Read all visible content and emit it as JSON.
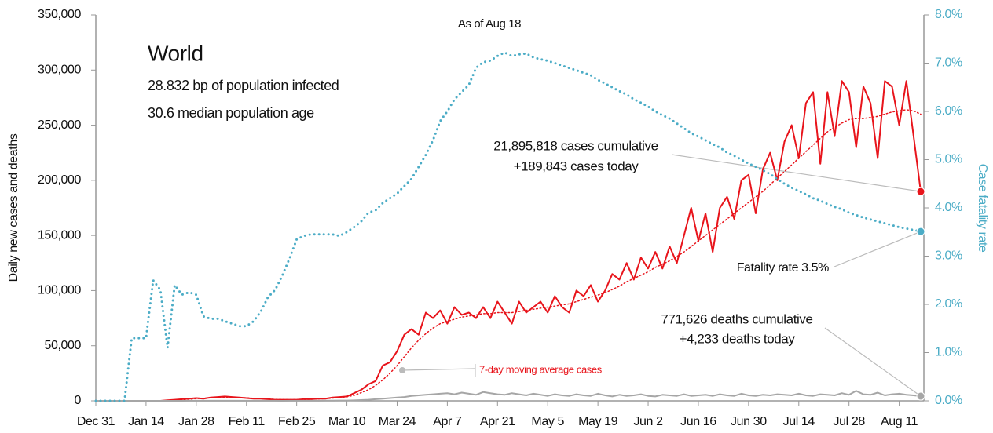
{
  "chart_data": {
    "type": "line",
    "annotations": [
      "As of Aug 18",
      "World",
      "28.832 bp of population infected",
      "30.6 median population age",
      "21,895,818 cases cumulative",
      "+189,843 cases today",
      "Fatality rate 3.5%",
      "771,626 deaths cumulative",
      "+4,233 deaths today"
    ],
    "ylabel": "Daily new cases and deaths",
    "y2label": "Case fatality rate",
    "categories": [
      "Dec 31",
      null,
      null,
      null,
      null,
      null,
      null,
      "Jan 14",
      null,
      null,
      null,
      null,
      null,
      null,
      "Jan 28",
      null,
      null,
      null,
      null,
      null,
      null,
      "Feb 11",
      null,
      null,
      null,
      null,
      null,
      null,
      "Feb 25",
      null,
      null,
      null,
      null,
      null,
      null,
      "Mar 10",
      null,
      null,
      null,
      null,
      null,
      null,
      "Mar 24",
      null,
      null,
      null,
      null,
      null,
      null,
      "Apr 7",
      null,
      null,
      null,
      null,
      null,
      null,
      "Apr 21",
      null,
      null,
      null,
      null,
      null,
      null,
      "May 5",
      null,
      null,
      null,
      null,
      null,
      null,
      "May 19",
      null,
      null,
      null,
      null,
      null,
      null,
      "Jun 2",
      null,
      null,
      null,
      null,
      null,
      null,
      "Jun 16",
      null,
      null,
      null,
      null,
      null,
      null,
      "Jun 30",
      null,
      null,
      null,
      null,
      null,
      null,
      "Jul 14",
      null,
      null,
      null,
      null,
      null,
      null,
      "Jul 28",
      null,
      null,
      null,
      null,
      null,
      null,
      "Aug 11",
      null,
      null,
      null
    ],
    "series": [
      {
        "color": "#e8141b",
        "style": "solid",
        "width": 2,
        "values": [
          0,
          0,
          0,
          0,
          0,
          0,
          0,
          0,
          0,
          0,
          500,
          1000,
          1500,
          2000,
          2500,
          2000,
          3000,
          3500,
          4000,
          3500,
          3000,
          2500,
          2000,
          2000,
          1500,
          1000,
          1000,
          1000,
          1000,
          1500,
          1500,
          2000,
          2000,
          3000,
          3500,
          4000,
          7000,
          10000,
          15000,
          18000,
          32000,
          35000,
          45000,
          60000,
          65000,
          60000,
          80000,
          75000,
          82000,
          70000,
          85000,
          78000,
          80000,
          75000,
          85000,
          75000,
          90000,
          80000,
          70000,
          90000,
          80000,
          85000,
          90000,
          80000,
          95000,
          85000,
          80000,
          100000,
          95000,
          105000,
          90000,
          100000,
          115000,
          110000,
          125000,
          110000,
          130000,
          120000,
          135000,
          120000,
          140000,
          125000,
          150000,
          175000,
          145000,
          170000,
          135000,
          175000,
          185000,
          165000,
          200000,
          205000,
          170000,
          210000,
          225000,
          200000,
          235000,
          250000,
          220000,
          270000,
          280000,
          215000,
          280000,
          240000,
          290000,
          280000,
          230000,
          285000,
          270000,
          220000,
          290000,
          285000,
          250000,
          290000,
          240000,
          189843
        ]
      },
      {
        "name": "7-day moving average cases",
        "color": "#e8141b",
        "style": "dotted",
        "width": 1.5,
        "values": [
          0,
          0,
          0,
          0,
          0,
          0,
          0,
          0,
          0,
          0,
          200,
          500,
          1000,
          1500,
          2000,
          2300,
          2700,
          3000,
          3300,
          3200,
          3000,
          2700,
          2300,
          2000,
          1700,
          1300,
          1100,
          1000,
          1100,
          1200,
          1400,
          1700,
          2000,
          2500,
          3000,
          3700,
          5000,
          7500,
          10000,
          14000,
          19000,
          25000,
          32000,
          40000,
          48000,
          55000,
          61000,
          66000,
          70000,
          72000,
          74000,
          76000,
          77000,
          78000,
          79000,
          79000,
          80000,
          80000,
          80000,
          81000,
          82000,
          83000,
          84000,
          85000,
          86000,
          87000,
          88000,
          90000,
          92000,
          94000,
          96000,
          98000,
          101000,
          104000,
          108000,
          111000,
          114000,
          117000,
          121000,
          124000,
          127000,
          131000,
          135000,
          140000,
          145000,
          150000,
          155000,
          160000,
          165000,
          170000,
          175000,
          180000,
          185000,
          190000,
          196000,
          202000,
          208000,
          214000,
          220000,
          226000,
          232000,
          238000,
          244000,
          248000,
          252000,
          255000,
          256000,
          256000,
          257000,
          258000,
          260000,
          262000,
          263000,
          264000,
          263000,
          260000
        ]
      },
      {
        "color": "#a6a6a6",
        "style": "solid",
        "width": 2,
        "values": [
          0,
          0,
          0,
          0,
          0,
          0,
          0,
          0,
          0,
          0,
          0,
          0,
          20,
          40,
          60,
          80,
          100,
          100,
          90,
          80,
          80,
          80,
          70,
          60,
          50,
          40,
          30,
          40,
          50,
          60,
          80,
          100,
          150,
          200,
          250,
          300,
          400,
          700,
          1000,
          1500,
          2000,
          2500,
          3000,
          3500,
          4500,
          5000,
          5500,
          6000,
          6500,
          7000,
          6000,
          7500,
          6500,
          5500,
          8000,
          7000,
          6000,
          5500,
          7000,
          6000,
          5000,
          6500,
          5500,
          4500,
          6000,
          5000,
          4500,
          6000,
          5000,
          4500,
          6500,
          5000,
          4000,
          5500,
          4500,
          5000,
          6000,
          4500,
          4000,
          5500,
          5000,
          4500,
          6000,
          4500,
          5000,
          5500,
          4500,
          6000,
          5000,
          4500,
          6500,
          5000,
          4500,
          5500,
          5000,
          6000,
          5500,
          5000,
          6500,
          5000,
          4500,
          6000,
          5500,
          5000,
          7000,
          5500,
          9000,
          6000,
          5500,
          7500,
          5000,
          6000,
          6500,
          5500,
          5000,
          4233
        ]
      },
      {
        "color": "#4bacc6",
        "style": "dotted",
        "width": 3,
        "axis": "y2",
        "values": [
          0,
          0,
          0,
          0,
          0,
          1.3,
          1.3,
          1.3,
          2.5,
          2.3,
          1.1,
          2.4,
          2.2,
          2.25,
          2.2,
          1.75,
          1.7,
          1.7,
          1.65,
          1.6,
          1.55,
          1.55,
          1.65,
          1.85,
          2.15,
          2.3,
          2.6,
          2.95,
          3.35,
          3.42,
          3.45,
          3.45,
          3.45,
          3.45,
          3.42,
          3.5,
          3.6,
          3.72,
          3.9,
          3.95,
          4.1,
          4.2,
          4.3,
          4.45,
          4.6,
          4.85,
          5.1,
          5.4,
          5.8,
          6.0,
          6.25,
          6.4,
          6.55,
          6.9,
          7.02,
          7.05,
          7.15,
          7.22,
          7.15,
          7.18,
          7.2,
          7.12,
          7.08,
          7.05,
          7.0,
          6.95,
          6.9,
          6.85,
          6.8,
          6.75,
          6.65,
          6.58,
          6.5,
          6.42,
          6.35,
          6.25,
          6.18,
          6.1,
          6.0,
          5.92,
          5.85,
          5.75,
          5.65,
          5.55,
          5.48,
          5.4,
          5.32,
          5.25,
          5.15,
          5.08,
          5.0,
          4.92,
          4.85,
          4.78,
          4.7,
          4.6,
          4.5,
          4.42,
          4.35,
          4.28,
          4.2,
          4.15,
          4.08,
          4.02,
          3.97,
          3.9,
          3.85,
          3.8,
          3.76,
          3.72,
          3.68,
          3.64,
          3.6,
          3.57,
          3.54,
          3.51
        ]
      }
    ],
    "ylim": [
      0,
      350000
    ],
    "yticks": [
      {
        "value": 0,
        "label": "0"
      },
      {
        "value": 50000,
        "label": "50,000"
      },
      {
        "value": 100000,
        "label": "100,000"
      },
      {
        "value": 150000,
        "label": "150,000"
      },
      {
        "value": 200000,
        "label": "200,000"
      },
      {
        "value": 250000,
        "label": "250,000"
      },
      {
        "value": 300000,
        "label": "300,000"
      },
      {
        "value": 350000,
        "label": "350,000"
      }
    ],
    "y2lim": [
      0,
      8
    ],
    "y2ticks": [
      {
        "value": 0,
        "label": "0.0%"
      },
      {
        "value": 1,
        "label": "1.0%"
      },
      {
        "value": 2,
        "label": "2.0%"
      },
      {
        "value": 3,
        "label": "3.0%"
      },
      {
        "value": 4,
        "label": "4.0%"
      },
      {
        "value": 5,
        "label": "5.0%"
      },
      {
        "value": 6,
        "label": "6.0%"
      },
      {
        "value": 7,
        "label": "7.0%"
      },
      {
        "value": 8,
        "label": "8.0%"
      }
    ],
    "y2color": "#4bacc6",
    "grid": false
  }
}
